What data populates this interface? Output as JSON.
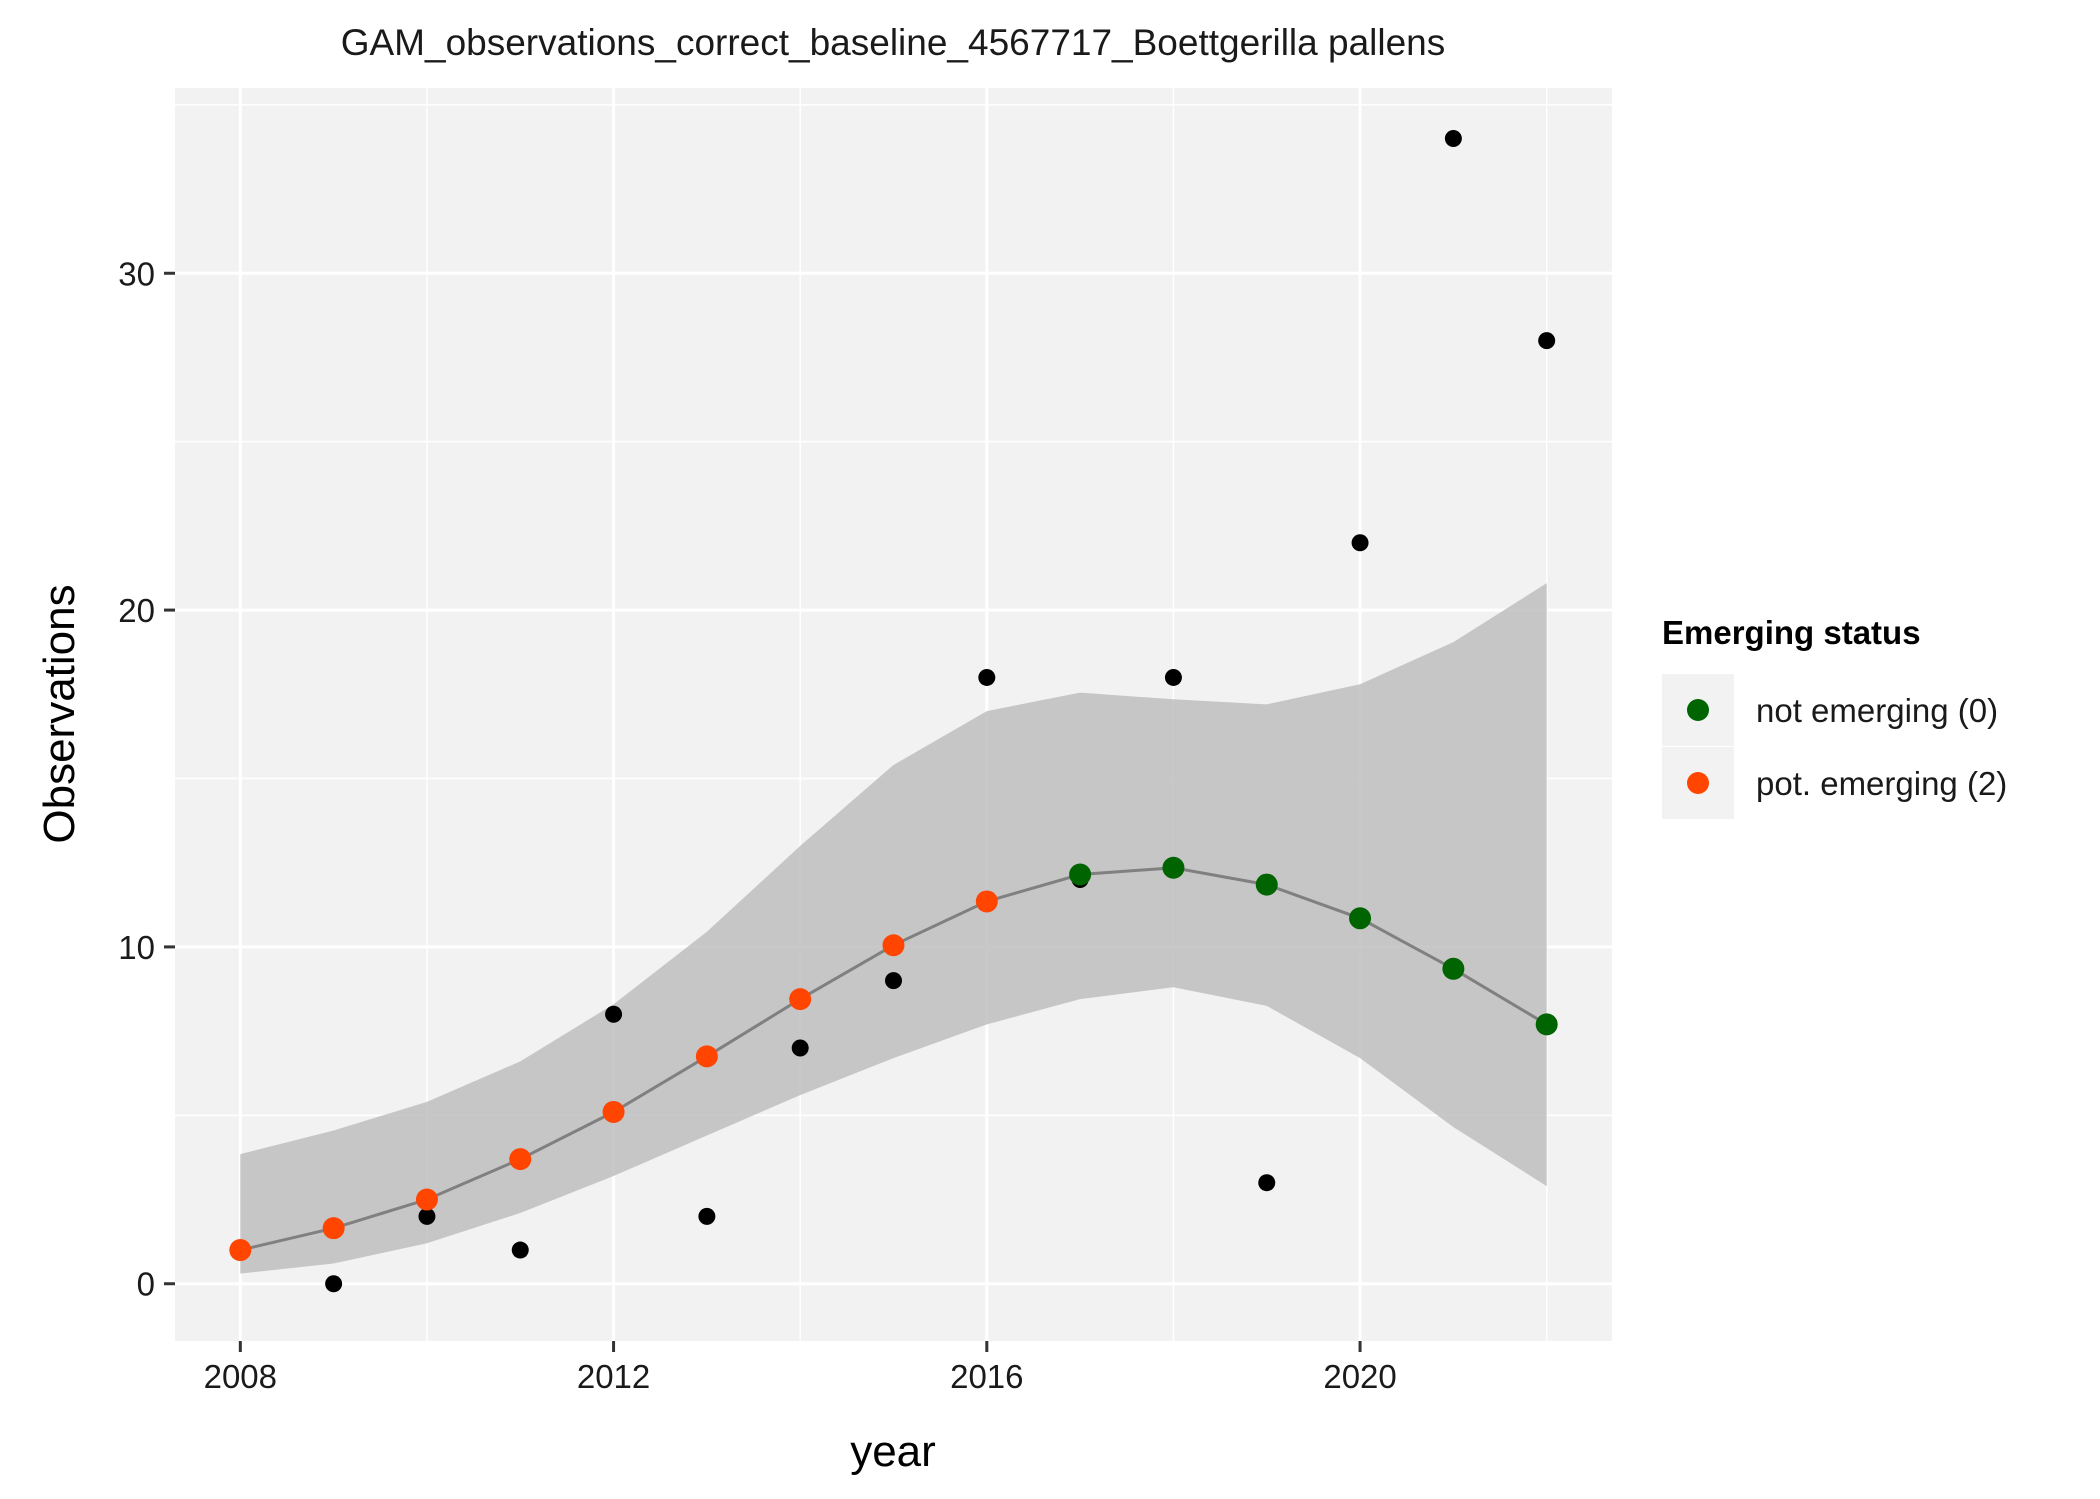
{
  "chart_data": {
    "type": "scatter",
    "title": "GAM_observations_correct_baseline_4567717_Boettgerilla pallens",
    "xlabel": "year",
    "ylabel": "Observations",
    "xlim": [
      2007.3,
      2022.7
    ],
    "ylim": [
      -1.7,
      35.5
    ],
    "x_ticks": [
      2008,
      2012,
      2016,
      2020
    ],
    "x_tick_labels": [
      "2008",
      "2012",
      "2016",
      "2020"
    ],
    "x_minor_ticks": [
      2010,
      2014,
      2018,
      2022
    ],
    "y_ticks": [
      0,
      10,
      20,
      30
    ],
    "y_tick_labels": [
      "0",
      "10",
      "20",
      "30"
    ],
    "y_minor_ticks": [
      5,
      15,
      25,
      35
    ],
    "grid": true,
    "background": "#F2F2F2",
    "observed": {
      "color": "#000000",
      "x": [
        2008,
        2009,
        2010,
        2011,
        2012,
        2013,
        2014,
        2015,
        2016,
        2017,
        2018,
        2019,
        2020,
        2021,
        2022
      ],
      "y": [
        1,
        0,
        2,
        1,
        8,
        2,
        7,
        9,
        18,
        12,
        18,
        3,
        22,
        34,
        28
      ]
    },
    "fit": {
      "line_color": "#808080",
      "ribbon_color": "#BEBEBE",
      "x": [
        2008,
        2009,
        2010,
        2011,
        2012,
        2013,
        2014,
        2015,
        2016,
        2017,
        2018,
        2019,
        2020,
        2021,
        2022
      ],
      "y": [
        1.0,
        1.65,
        2.5,
        3.7,
        5.1,
        6.75,
        8.45,
        10.05,
        11.35,
        12.15,
        12.35,
        11.85,
        10.85,
        9.35,
        7.7
      ],
      "lower": [
        0.3,
        0.6,
        1.2,
        2.1,
        3.2,
        4.4,
        5.6,
        6.7,
        7.7,
        8.45,
        8.8,
        8.25,
        6.7,
        4.65,
        2.9
      ],
      "upper": [
        3.85,
        4.55,
        5.4,
        6.6,
        8.3,
        10.45,
        13.0,
        15.4,
        17.0,
        17.55,
        17.35,
        17.2,
        17.8,
        19.05,
        20.8
      ],
      "status": [
        2,
        2,
        2,
        2,
        2,
        2,
        2,
        2,
        2,
        0,
        0,
        0,
        0,
        0,
        0
      ]
    },
    "legend": {
      "title": "Emerging status",
      "placement": "right",
      "entries": [
        {
          "label": "not emerging (0)",
          "color": "#006400",
          "status": 0
        },
        {
          "label": "pot. emerging (2)",
          "color": "#FF4500",
          "status": 2
        }
      ]
    }
  }
}
